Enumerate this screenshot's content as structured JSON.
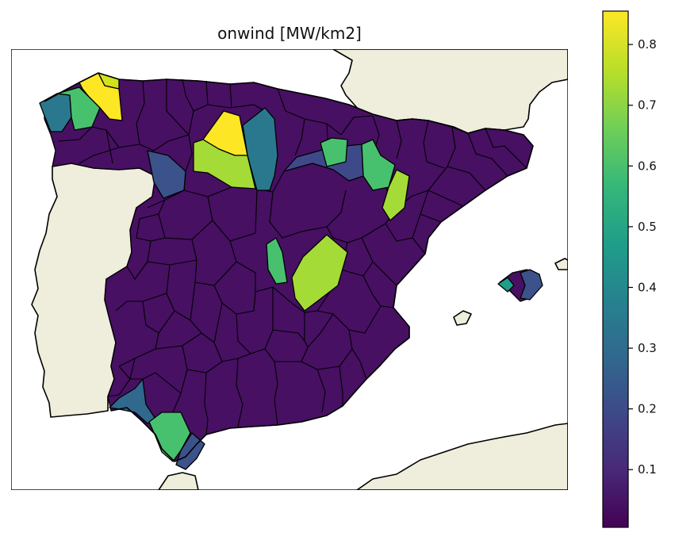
{
  "title": "onwind [MW/km2]",
  "colors": {
    "land": "#efeddb",
    "sea": "#ffffff",
    "border": "#000000",
    "viridis": [
      "#440154",
      "#482878",
      "#3e4989",
      "#31688e",
      "#26828e",
      "#1f9e89",
      "#35b779",
      "#6ece58",
      "#b5de2b",
      "#fde725"
    ]
  },
  "colorbar": {
    "min": 0.005,
    "max": 0.855,
    "ticks": [
      "0.1",
      "0.2",
      "0.3",
      "0.4",
      "0.5",
      "0.6",
      "0.7",
      "0.8"
    ]
  },
  "highlight_regions": [
    {
      "name": "galicia-north-region",
      "value": 0.82
    },
    {
      "name": "galicia-northeast-region",
      "value": 0.76
    },
    {
      "name": "galicia-west-region",
      "value": 0.42
    },
    {
      "name": "galicia-green-region",
      "value": 0.6
    },
    {
      "name": "palencia-north-region",
      "value": 0.84
    },
    {
      "name": "burgos-west-region",
      "value": 0.72
    },
    {
      "name": "cantabria-teal-region",
      "value": 0.36
    },
    {
      "name": "leon-blue-region",
      "value": 0.2
    },
    {
      "name": "navarra-green-region",
      "value": 0.6
    },
    {
      "name": "zaragoza-green-region",
      "value": 0.6
    },
    {
      "name": "soria-blue-region",
      "value": 0.15
    },
    {
      "name": "teruel-lime-region",
      "value": 0.72
    },
    {
      "name": "guadalajara-green-region",
      "value": 0.6
    },
    {
      "name": "cuenca-lime-region",
      "value": 0.74
    },
    {
      "name": "huelva-blue-region",
      "value": 0.3
    },
    {
      "name": "cadiz-green-region",
      "value": 0.6
    },
    {
      "name": "malaga-blue-region",
      "value": 0.22
    },
    {
      "name": "mallorca-teal-region",
      "value": 0.45
    },
    {
      "name": "mallorca-blue-region",
      "value": 0.2
    }
  ]
}
